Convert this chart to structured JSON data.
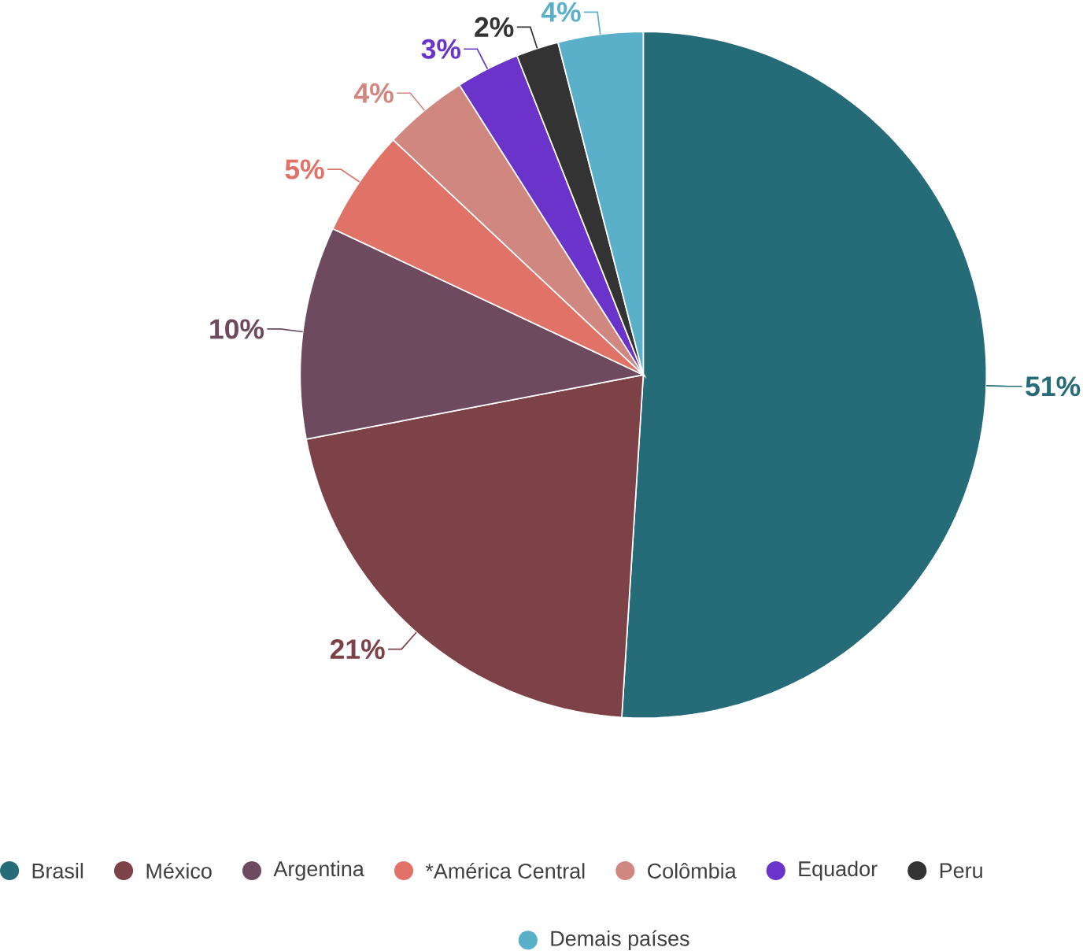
{
  "chart_data": {
    "type": "pie",
    "categories": [
      "Brasil",
      "México",
      "Argentina",
      "*América Central",
      "Colômbia",
      "Equador",
      "Peru",
      "Demais países"
    ],
    "values": [
      51,
      21,
      10,
      5,
      4,
      3,
      2,
      4
    ],
    "value_labels": [
      "51%",
      "21%",
      "10%",
      "5%",
      "4%",
      "3%",
      "2%",
      "4%"
    ],
    "colors": [
      "#266b78",
      "#7d4148",
      "#6e4a5f",
      "#e07268",
      "#cf8780",
      "#6a33c9",
      "#333333",
      "#5ab0c8"
    ],
    "legend": "bottom"
  }
}
